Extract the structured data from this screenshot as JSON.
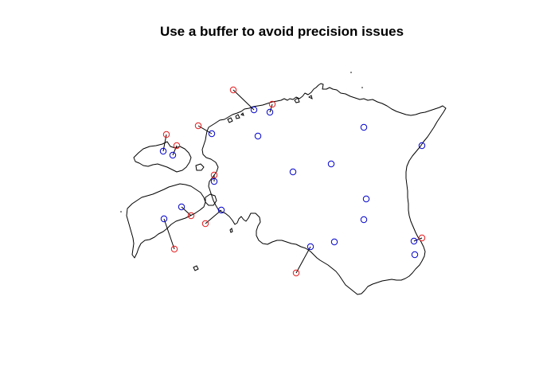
{
  "plot": {
    "title": "Use a buffer to avoid precision issues"
  },
  "colors": {
    "coastline": "#000000",
    "original_points": "#e41a1c",
    "snapped_points": "#0000cc",
    "connector": "#000000"
  },
  "legend": null
}
